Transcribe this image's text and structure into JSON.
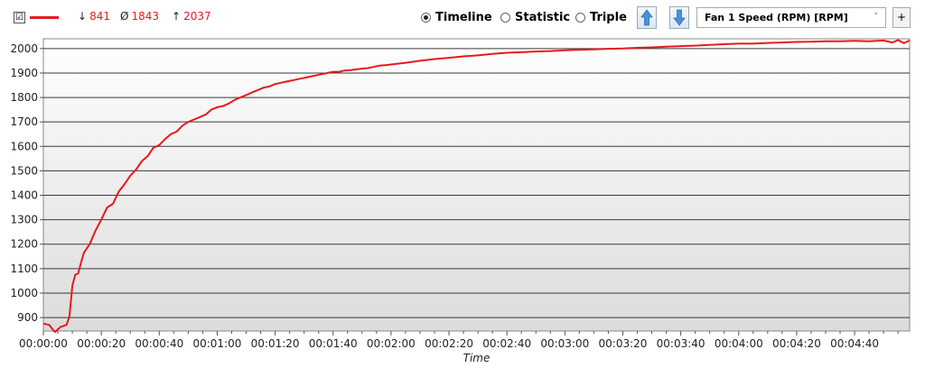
{
  "toolbar": {
    "series_checked": "☑",
    "stats": {
      "min_symbol": "↓",
      "min": "841",
      "avg_symbol": "Ø",
      "avg": "1843",
      "max_symbol": "↑",
      "max": "2037"
    },
    "views": [
      {
        "label": "Timeline",
        "selected": true
      },
      {
        "label": "Statistic",
        "selected": false
      },
      {
        "label": "Triple",
        "selected": false
      }
    ],
    "sensor_select": "Fan 1 Speed (RPM) [RPM]",
    "add_label": "+"
  },
  "colors": {
    "series": "#e8191e",
    "accent": "#4a90d9"
  },
  "chart_data": {
    "type": "line",
    "xlabel": "Time",
    "ylabel": "",
    "xlim_seconds": [
      0,
      299
    ],
    "ylim": [
      845,
      2040
    ],
    "x_ticks": [
      "00:00:00",
      "00:00:20",
      "00:00:40",
      "00:01:00",
      "00:01:20",
      "00:01:40",
      "00:02:00",
      "00:02:20",
      "00:02:40",
      "00:03:00",
      "00:03:20",
      "00:03:40",
      "00:04:00",
      "00:04:20",
      "00:04:40"
    ],
    "y_ticks": [
      900,
      1000,
      1100,
      1200,
      1300,
      1400,
      1500,
      1600,
      1700,
      1800,
      1900,
      2000
    ],
    "grid": true,
    "series": [
      {
        "color": "#e8191e",
        "x_seconds": [
          0,
          2,
          3,
          4,
          6,
          8,
          9,
          10,
          11,
          12,
          13,
          14,
          16,
          18,
          20,
          22,
          24,
          26,
          28,
          30,
          32,
          34,
          36,
          38,
          40,
          42,
          44,
          46,
          48,
          50,
          52,
          54,
          56,
          58,
          60,
          62,
          64,
          66,
          68,
          70,
          72,
          74,
          76,
          78,
          80,
          82,
          84,
          86,
          88,
          90,
          92,
          94,
          96,
          98,
          100,
          102,
          104,
          106,
          108,
          110,
          112,
          114,
          116,
          118,
          120,
          125,
          130,
          135,
          140,
          145,
          150,
          155,
          160,
          165,
          170,
          175,
          180,
          185,
          190,
          195,
          200,
          205,
          210,
          215,
          220,
          225,
          230,
          235,
          240,
          245,
          250,
          255,
          260,
          265,
          270,
          275,
          280,
          285,
          290,
          293,
          295,
          297,
          299
        ],
        "values": [
          875,
          870,
          855,
          841,
          862,
          870,
          905,
          1030,
          1075,
          1080,
          1125,
          1165,
          1200,
          1255,
          1300,
          1350,
          1365,
          1415,
          1445,
          1480,
          1505,
          1540,
          1560,
          1595,
          1605,
          1630,
          1650,
          1660,
          1685,
          1700,
          1710,
          1720,
          1730,
          1750,
          1760,
          1765,
          1775,
          1790,
          1800,
          1810,
          1820,
          1830,
          1840,
          1845,
          1855,
          1860,
          1865,
          1870,
          1875,
          1880,
          1885,
          1890,
          1895,
          1900,
          1905,
          1905,
          1910,
          1912,
          1915,
          1918,
          1920,
          1925,
          1930,
          1932,
          1935,
          1942,
          1950,
          1957,
          1962,
          1968,
          1972,
          1978,
          1983,
          1985,
          1988,
          1990,
          1993,
          1995,
          1997,
          1999,
          2000,
          2003,
          2005,
          2008,
          2010,
          2012,
          2015,
          2018,
          2020,
          2020,
          2023,
          2025,
          2027,
          2028,
          2030,
          2030,
          2032,
          2030,
          2033,
          2025,
          2035,
          2022,
          2033
        ]
      }
    ]
  }
}
